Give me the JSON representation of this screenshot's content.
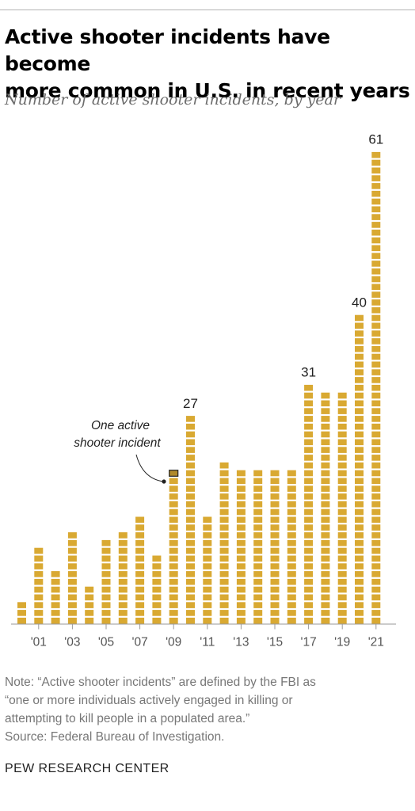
{
  "header": {
    "title_line1": "Active shooter incidents have become",
    "title_line2": "more common in U.S. in recent years",
    "subtitle": "Number of active shooter incidents, by year"
  },
  "chart_data": {
    "type": "bar",
    "title": "Active shooter incidents have become more common in U.S. in recent years",
    "subtitle": "Number of active shooter incidents, by year",
    "xlabel": "",
    "ylabel": "",
    "x": [
      2000,
      2001,
      2002,
      2003,
      2004,
      2005,
      2006,
      2007,
      2008,
      2009,
      2010,
      2011,
      2012,
      2013,
      2014,
      2015,
      2016,
      2017,
      2018,
      2019,
      2020,
      2021
    ],
    "values": [
      3,
      10,
      7,
      12,
      5,
      11,
      12,
      14,
      9,
      20,
      27,
      14,
      21,
      20,
      20,
      20,
      20,
      31,
      30,
      30,
      40,
      61
    ],
    "tick_labels": [
      "'01",
      "'03",
      "'05",
      "'07",
      "'09",
      "'11",
      "'13",
      "'15",
      "'17",
      "'19",
      "'21"
    ],
    "data_labels": [
      {
        "year": 2010,
        "text": "27"
      },
      {
        "year": 2017,
        "text": "31"
      },
      {
        "year": 2020,
        "text": "40"
      },
      {
        "year": 2021,
        "text": "61"
      }
    ],
    "annotation": {
      "line1": "One active",
      "line2": "shooter incident"
    },
    "bar_color": "#d9a932",
    "highlight_color": "#b08a2a",
    "grid": false,
    "legend": "none"
  },
  "notes": {
    "line1": "Note: “Active shooter incidents” are defined by the FBI as",
    "line2": "“one or more individuals actively engaged in killing or",
    "line3": "attempting to kill people in a populated area.”",
    "source": "Source: Federal Bureau of Investigation."
  },
  "brand": "PEW RESEARCH CENTER"
}
